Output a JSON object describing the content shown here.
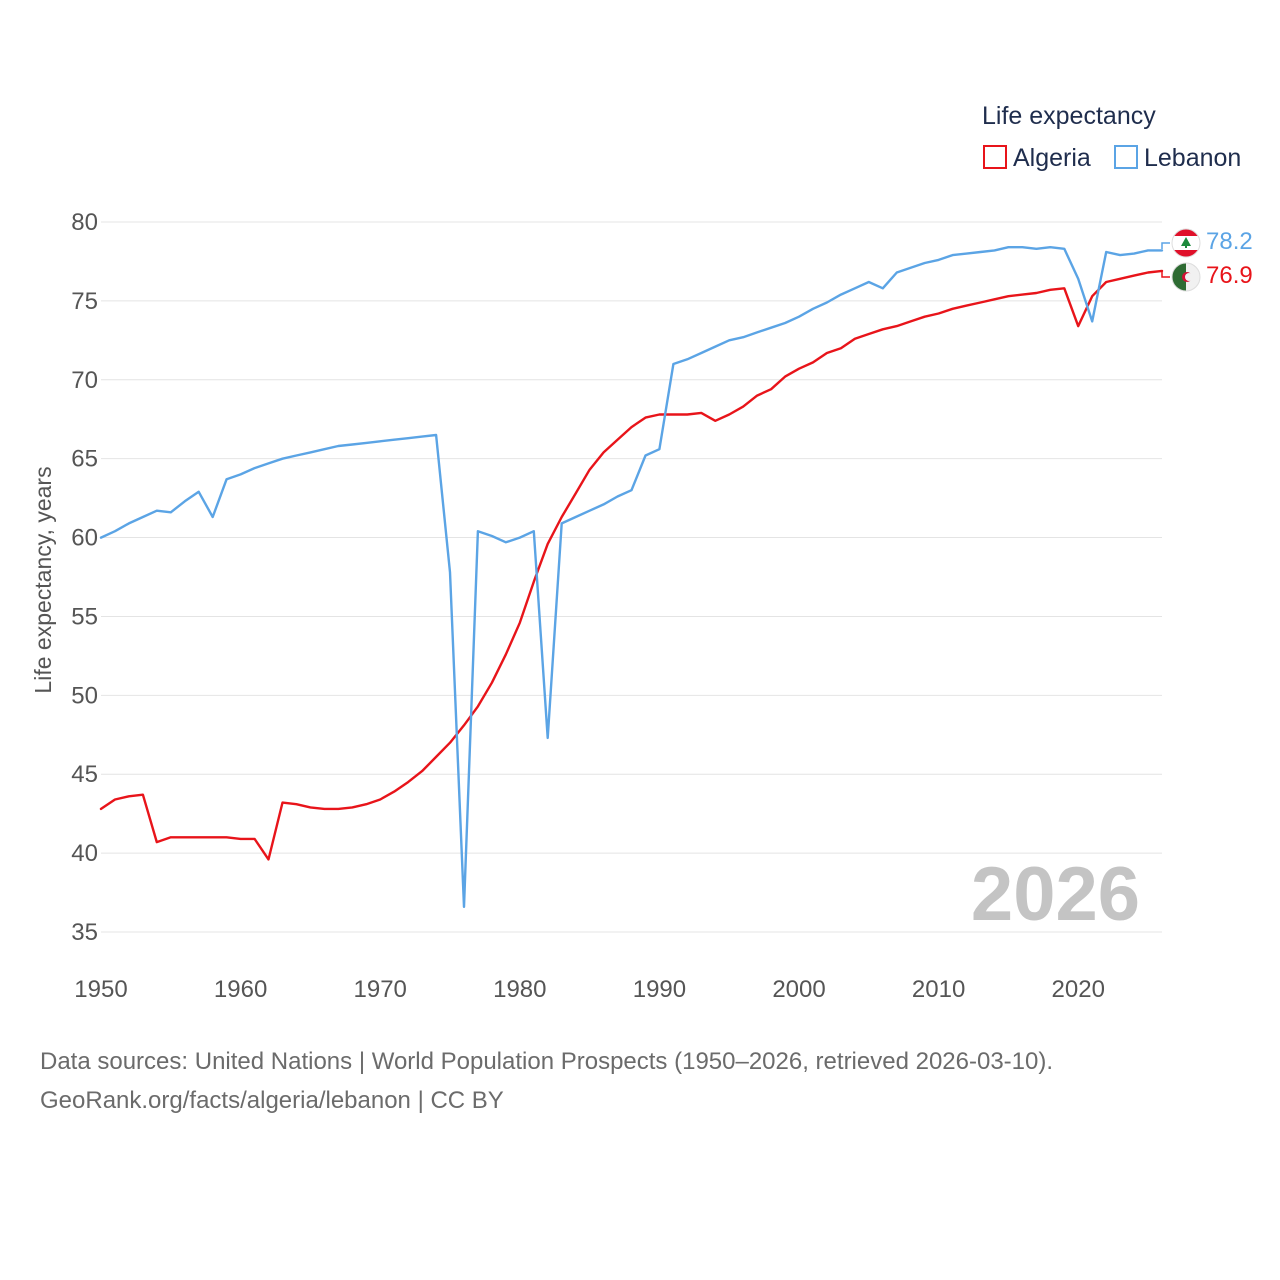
{
  "chart_data": {
    "type": "line",
    "legend_title": "Life expectancy",
    "ylabel": "Life expectancy, years",
    "xlabel": "",
    "xlim": [
      1950,
      2026
    ],
    "ylim": [
      35,
      80
    ],
    "x_ticks": [
      1950,
      1960,
      1970,
      1980,
      1990,
      2000,
      2010,
      2020
    ],
    "y_ticks": [
      35,
      40,
      45,
      50,
      55,
      60,
      65,
      70,
      75,
      80
    ],
    "grid": true,
    "legend_position": "top-right",
    "current_year": "2026",
    "x": [
      1950,
      1951,
      1952,
      1953,
      1954,
      1955,
      1956,
      1957,
      1958,
      1959,
      1960,
      1961,
      1962,
      1963,
      1964,
      1965,
      1966,
      1967,
      1968,
      1969,
      1970,
      1971,
      1972,
      1973,
      1974,
      1975,
      1976,
      1977,
      1978,
      1979,
      1980,
      1981,
      1982,
      1983,
      1984,
      1985,
      1986,
      1987,
      1988,
      1989,
      1990,
      1991,
      1992,
      1993,
      1994,
      1995,
      1996,
      1997,
      1998,
      1999,
      2000,
      2001,
      2002,
      2003,
      2004,
      2005,
      2006,
      2007,
      2008,
      2009,
      2010,
      2011,
      2012,
      2013,
      2014,
      2015,
      2016,
      2017,
      2018,
      2019,
      2020,
      2021,
      2022,
      2023,
      2024,
      2025,
      2026
    ],
    "series": [
      {
        "name": "Algeria",
        "color": "#e8141a",
        "end_label": "76.9",
        "flag": "algeria-flag",
        "values": [
          42.8,
          43.4,
          43.6,
          43.7,
          40.7,
          41.0,
          41.0,
          41.0,
          41.0,
          41.0,
          40.9,
          40.9,
          39.6,
          43.2,
          43.1,
          42.9,
          42.8,
          42.8,
          42.9,
          43.1,
          43.4,
          43.9,
          44.5,
          45.2,
          46.1,
          47.0,
          48.1,
          49.3,
          50.8,
          52.6,
          54.6,
          57.2,
          59.6,
          61.3,
          62.8,
          64.3,
          65.4,
          66.2,
          67.0,
          67.6,
          67.8,
          67.8,
          67.8,
          67.9,
          67.4,
          67.8,
          68.3,
          69.0,
          69.4,
          70.2,
          70.7,
          71.1,
          71.7,
          72.0,
          72.6,
          72.9,
          73.2,
          73.4,
          73.7,
          74.0,
          74.2,
          74.5,
          74.7,
          74.9,
          75.1,
          75.3,
          75.4,
          75.5,
          75.7,
          75.8,
          73.4,
          75.3,
          76.2,
          76.4,
          76.6,
          76.8,
          76.9
        ]
      },
      {
        "name": "Lebanon",
        "color": "#5ba4e5",
        "end_label": "78.2",
        "flag": "lebanon-flag",
        "values": [
          60.0,
          60.4,
          60.9,
          61.3,
          61.7,
          61.6,
          62.3,
          62.9,
          61.3,
          63.7,
          64.0,
          64.4,
          64.7,
          65.0,
          65.2,
          65.4,
          65.6,
          65.8,
          65.9,
          66.0,
          66.1,
          66.2,
          66.3,
          66.4,
          66.5,
          57.8,
          36.6,
          60.4,
          60.1,
          59.7,
          60.0,
          60.4,
          47.3,
          60.9,
          61.3,
          61.7,
          62.1,
          62.6,
          63.0,
          65.2,
          65.6,
          71.0,
          71.3,
          71.7,
          72.1,
          72.5,
          72.7,
          73.0,
          73.3,
          73.6,
          74.0,
          74.5,
          74.9,
          75.4,
          75.8,
          76.2,
          75.8,
          76.8,
          77.1,
          77.4,
          77.6,
          77.9,
          78.0,
          78.1,
          78.2,
          78.4,
          78.4,
          78.3,
          78.4,
          78.3,
          76.4,
          73.7,
          78.1,
          77.9,
          78.0,
          78.2,
          78.2
        ]
      }
    ]
  },
  "sources": {
    "line1": "Data sources: United Nations | World Population Prospects (1950–2026, retrieved 2026-03-10).",
    "line2": "GeoRank.org/facts/algeria/lebanon | CC BY"
  }
}
